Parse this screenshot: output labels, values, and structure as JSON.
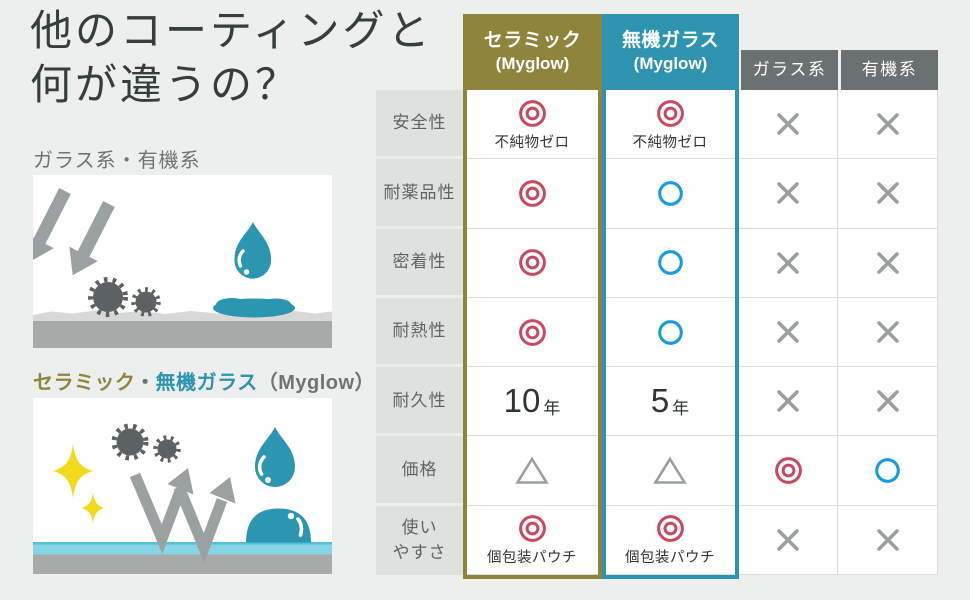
{
  "title": {
    "line1": "他のコーティングと",
    "line2": "何が違うの？"
  },
  "diagrams": [
    {
      "label": "ガラス系・有機系"
    },
    {
      "label_parts": [
        "セラミック",
        "・",
        "無機ガラス",
        "（Myglow）"
      ]
    }
  ],
  "table": {
    "columns": [
      {
        "line1": "セラミック",
        "line2": "(Myglow)"
      },
      {
        "line1": "無機ガラス",
        "line2": "(Myglow)"
      },
      {
        "label": "ガラス系"
      },
      {
        "label": "有機系"
      }
    ],
    "rows": [
      {
        "label": "安全性",
        "cells": [
          {
            "glyph": "◎",
            "note": "不純物ゼロ"
          },
          {
            "glyph": "◎",
            "note": "不純物ゼロ"
          },
          {
            "glyph": "✕"
          },
          {
            "glyph": "✕"
          }
        ]
      },
      {
        "label": "耐薬品性",
        "cells": [
          {
            "glyph": "◎"
          },
          {
            "glyph": "○"
          },
          {
            "glyph": "✕"
          },
          {
            "glyph": "✕"
          }
        ]
      },
      {
        "label": "密着性",
        "cells": [
          {
            "glyph": "◎"
          },
          {
            "glyph": "○"
          },
          {
            "glyph": "✕"
          },
          {
            "glyph": "✕"
          }
        ]
      },
      {
        "label": "耐熱性",
        "cells": [
          {
            "glyph": "◎"
          },
          {
            "glyph": "○"
          },
          {
            "glyph": "✕"
          },
          {
            "glyph": "✕"
          }
        ]
      },
      {
        "label": "耐久性",
        "cells": [
          {
            "text": "10",
            "unit": "年"
          },
          {
            "text": "5",
            "unit": "年"
          },
          {
            "glyph": "✕"
          },
          {
            "glyph": "✕"
          }
        ]
      },
      {
        "label": "価格",
        "cells": [
          {
            "glyph": "△"
          },
          {
            "glyph": "△"
          },
          {
            "glyph": "◎"
          },
          {
            "glyph": "○"
          }
        ]
      },
      {
        "label": "使い\nやすさ",
        "cells": [
          {
            "glyph": "◎",
            "note": "個包装パウチ"
          },
          {
            "glyph": "◎",
            "note": "個包装パウチ"
          },
          {
            "glyph": "✕"
          },
          {
            "glyph": "✕"
          }
        ]
      }
    ]
  },
  "colors": {
    "background": "#ecefed",
    "ceramic_olive": "#8e843b",
    "inorganic_teal": "#2e93ae",
    "header_gray": "#6b7070",
    "rating_excellent_red": "#c84862",
    "rating_good_blue": "#189ade",
    "rating_neutral_gray": "#9aa0a0",
    "water_teal": "#2c95af",
    "sparkle_yellow": "#f1d91c"
  }
}
